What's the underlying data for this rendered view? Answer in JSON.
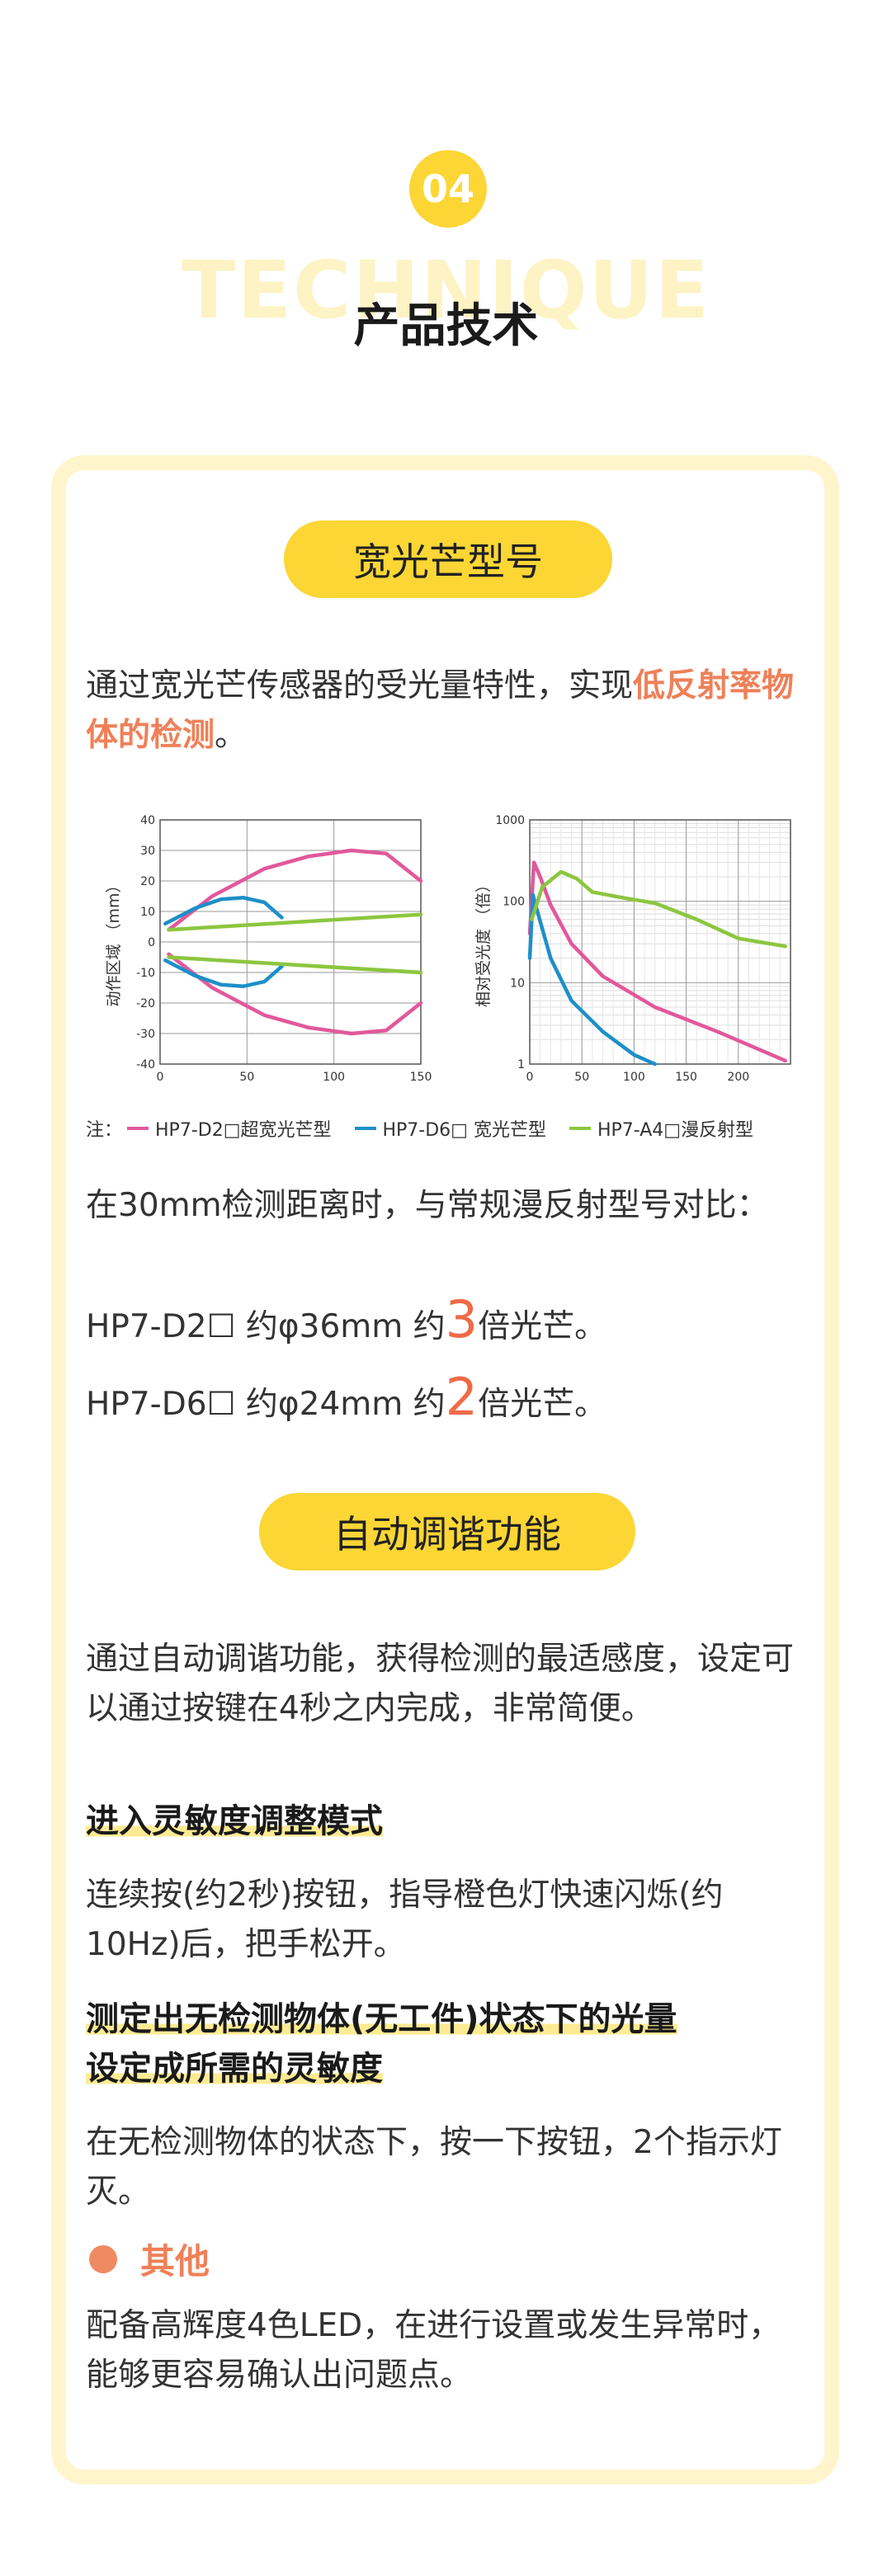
{
  "header": {
    "number": "04",
    "bg_word": "TECHNIQUE",
    "title": "产品技术"
  },
  "wide_beam": {
    "pill": "宽光芒型号",
    "intro_text": "通过宽光芒传感器的受光量特性，实现",
    "intro_highlight": "低反射率物体的检测",
    "intro_end": "。",
    "compare_intro": "在30mm检测距离时，与常规漫反射型号对比：",
    "line1_pre": "HP7-D2☐ 约φ36mm 约",
    "line1_num": "3",
    "line1_post": "倍光芒。",
    "line2_pre": "HP7-D6☐ 约φ24mm 约",
    "line2_num": "2",
    "line2_post": "倍光芒。"
  },
  "auto_tune": {
    "pill": "自动调谐功能",
    "intro": "通过自动调谐功能，获得检测的最适感度，设定可以通过按键在4秒之内完成，非常简便。",
    "step1_title": "进入灵敏度调整模式",
    "step1_text": "连续按(约2秒)按钮，指导橙色灯快速闪烁(约10Hz)后，把手松开。",
    "step2_title_line1": "测定出无检测物体(无工件)状态下的光量",
    "step2_title_line2": "设定成所需的灵敏度",
    "step2_text": "在无检测物体的状态下，按一下按钮，2个指示灯灭。"
  },
  "other": {
    "title": "其他",
    "text": "配备高辉度4色LED，在进行设置或发生异常时，能够更容易确认出问题点。"
  },
  "legend": {
    "note": "注：",
    "items": [
      {
        "label": "HP7-D2□超宽光芒型",
        "color": "#e2589b"
      },
      {
        "label": "HP7-D6□ 宽光芒型",
        "color": "#1e8fc8"
      },
      {
        "label": "HP7-A4□漫反射型",
        "color": "#8cc63f"
      }
    ]
  },
  "chart_data": [
    {
      "type": "line",
      "ylabel": "动作区域 （mm）",
      "xlim": [
        0,
        150
      ],
      "ylim": [
        -40,
        40
      ],
      "x_ticks": [
        0,
        50,
        100,
        150
      ],
      "y_ticks": [
        40,
        30,
        20,
        10,
        0,
        -10,
        -20,
        -30,
        -40
      ],
      "series": [
        {
          "color": "#e2589b",
          "points": [
            [
              5,
              4
            ],
            [
              30,
              15
            ],
            [
              60,
              24
            ],
            [
              85,
              28
            ],
            [
              110,
              30
            ],
            [
              130,
              29
            ],
            [
              150,
              20
            ]
          ]
        },
        {
          "color": "#e2589b",
          "points": [
            [
              5,
              -4
            ],
            [
              30,
              -15
            ],
            [
              60,
              -24
            ],
            [
              85,
              -28
            ],
            [
              110,
              -30
            ],
            [
              130,
              -29
            ],
            [
              150,
              -20
            ]
          ]
        },
        {
          "color": "#1e8fc8",
          "points": [
            [
              3,
              6
            ],
            [
              20,
              11
            ],
            [
              35,
              14
            ],
            [
              48,
              14.5
            ],
            [
              60,
              13
            ],
            [
              70,
              8
            ]
          ]
        },
        {
          "color": "#1e8fc8",
          "points": [
            [
              3,
              -6
            ],
            [
              20,
              -11
            ],
            [
              35,
              -14
            ],
            [
              48,
              -14.5
            ],
            [
              60,
              -13
            ],
            [
              70,
              -8
            ]
          ]
        },
        {
          "color": "#8cc63f",
          "points": [
            [
              5,
              4
            ],
            [
              150,
              9
            ]
          ]
        },
        {
          "color": "#8cc63f",
          "points": [
            [
              5,
              -5
            ],
            [
              150,
              -10
            ]
          ]
        }
      ]
    },
    {
      "type": "line",
      "ylabel": "相对受光度 （倍）",
      "xlim": [
        0,
        250
      ],
      "ylim": [
        1,
        1000
      ],
      "log_y": true,
      "x_ticks": [
        0,
        50,
        100,
        150,
        200
      ],
      "y_ticks": [
        1000,
        100,
        10,
        1
      ],
      "series": [
        {
          "color": "#e2589b",
          "points": [
            [
              0,
              40
            ],
            [
              4,
              300
            ],
            [
              10,
              200
            ],
            [
              20,
              90
            ],
            [
              40,
              30
            ],
            [
              70,
              12
            ],
            [
              120,
              5
            ],
            [
              180,
              2.5
            ],
            [
              245,
              1.1
            ]
          ]
        },
        {
          "color": "#1e8fc8",
          "points": [
            [
              0,
              20
            ],
            [
              3,
              120
            ],
            [
              8,
              70
            ],
            [
              20,
              20
            ],
            [
              40,
              6
            ],
            [
              70,
              2.5
            ],
            [
              100,
              1.3
            ],
            [
              120,
              1
            ]
          ]
        },
        {
          "color": "#8cc63f",
          "points": [
            [
              2,
              60
            ],
            [
              12,
              150
            ],
            [
              30,
              230
            ],
            [
              45,
              190
            ],
            [
              60,
              130
            ],
            [
              90,
              110
            ],
            [
              120,
              95
            ],
            [
              160,
              60
            ],
            [
              200,
              35
            ],
            [
              245,
              28
            ]
          ]
        }
      ]
    }
  ]
}
